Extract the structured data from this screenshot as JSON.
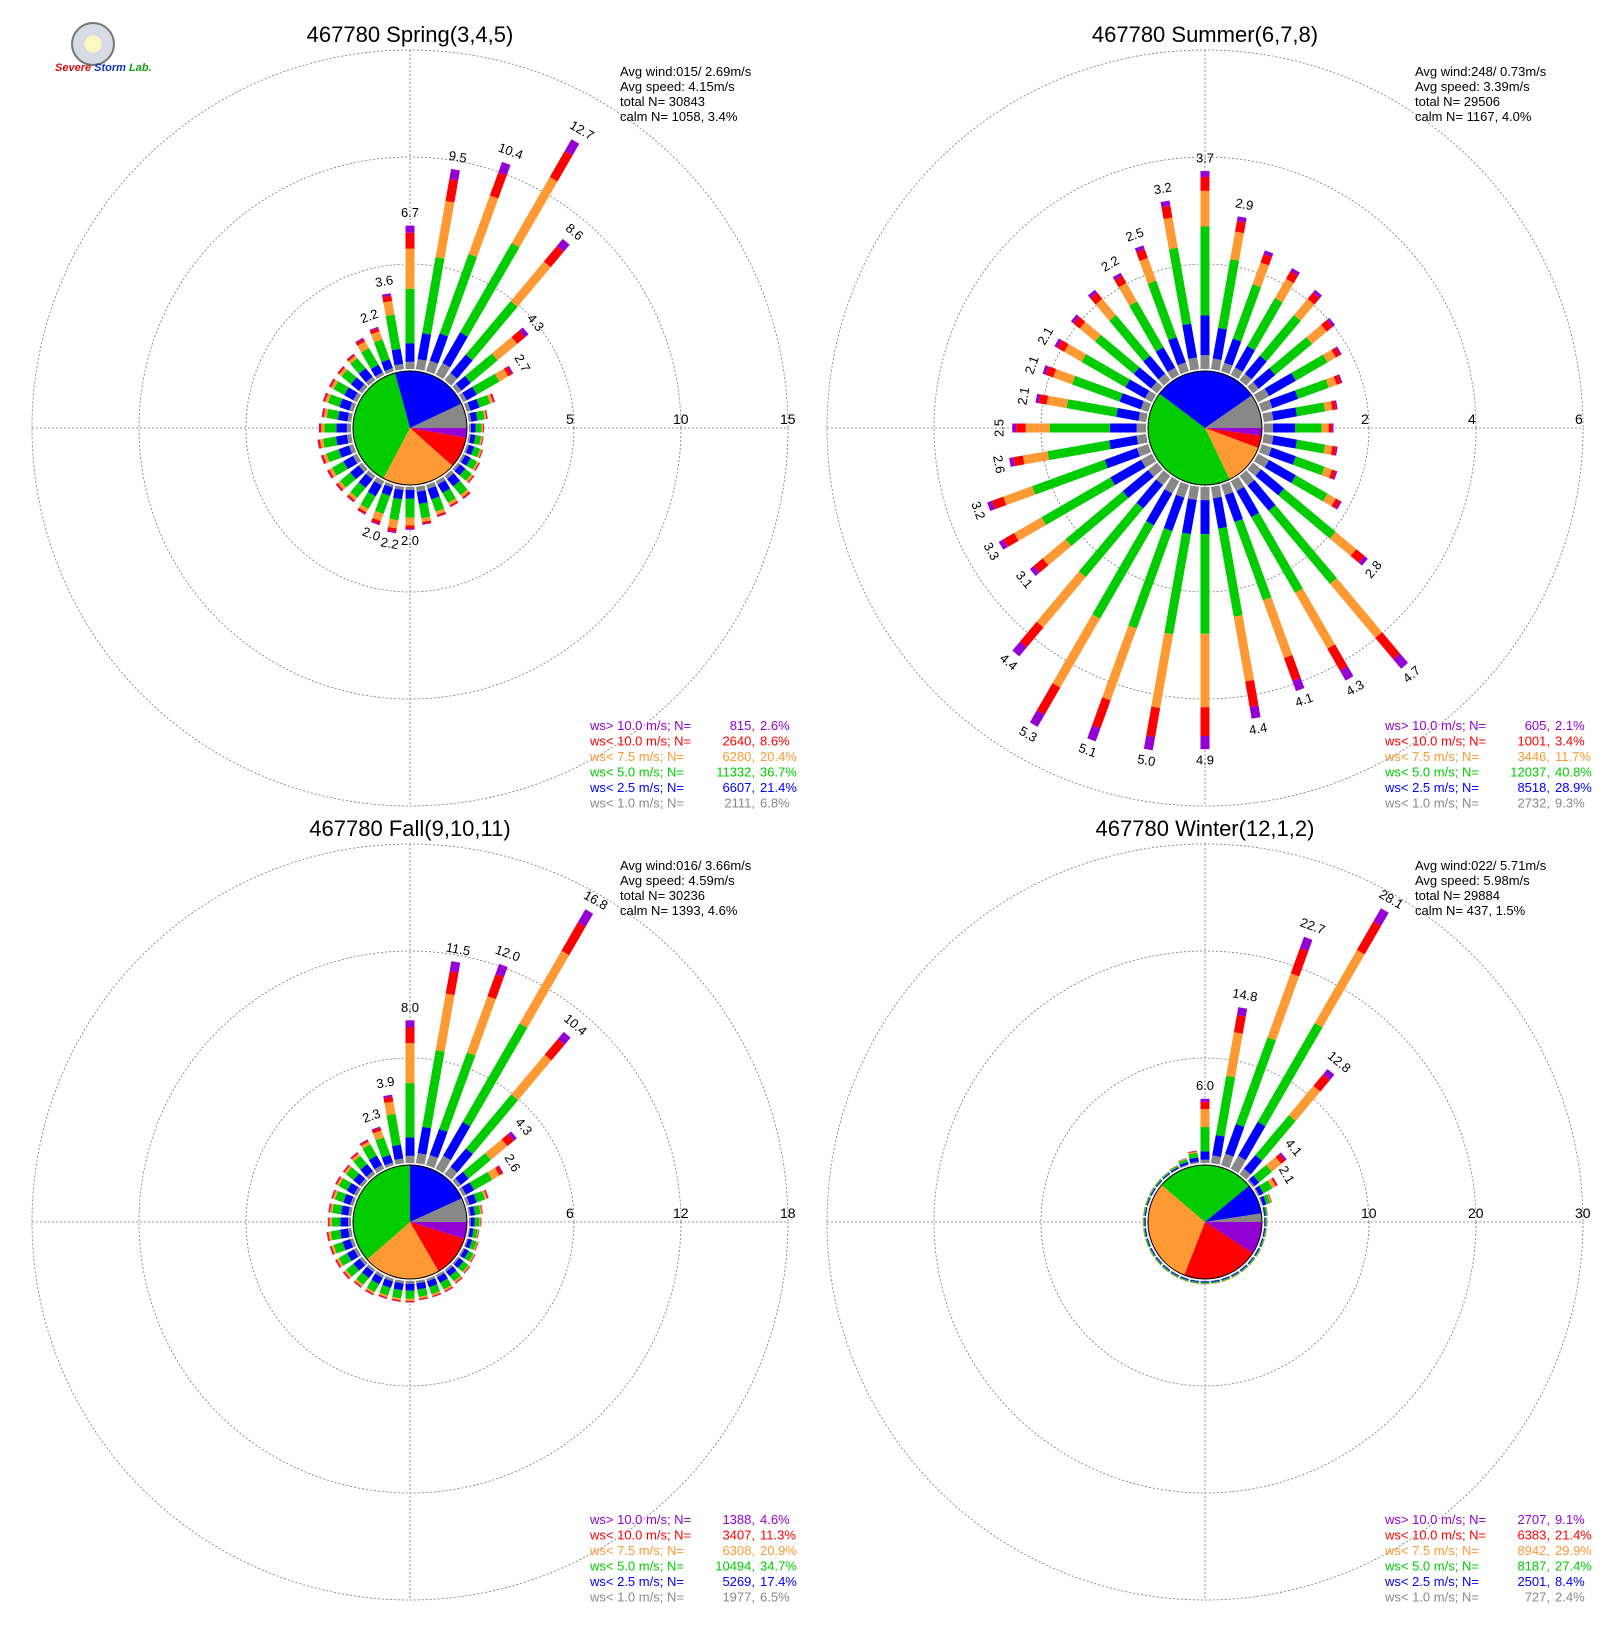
{
  "logo": {
    "part1": "Severe",
    "part2": "Storm",
    "part3": "Lab."
  },
  "colors": {
    "purple": "#9400d3",
    "red": "#ff0000",
    "orange": "#ff9933",
    "green": "#00cc00",
    "blue": "#0000ff",
    "gray": "#888888"
  },
  "chart_data": [
    {
      "type": "wind-rose",
      "station": "467780",
      "title": "467780 Spring(3,4,5)",
      "ring_labels": [
        "5",
        "10",
        "15"
      ],
      "rmax": 15,
      "stats": {
        "avg_wind": "Avg wind:015/ 2.69m/s",
        "avg_speed": "Avg speed: 4.15m/s",
        "total": "total N=      30843",
        "calm": "calm N=   1058,   3.4%"
      },
      "legend": [
        {
          "label": "ws> 10.0 m/s; N=",
          "count": "815",
          "pct": "2.6%",
          "color": "#9400d3"
        },
        {
          "label": "ws< 10.0 m/s; N=",
          "count": "2640",
          "pct": "8.6%",
          "color": "#ff0000"
        },
        {
          "label": "ws<  7.5 m/s; N=",
          "count": "6280",
          "pct": "20.4%",
          "color": "#ff9933"
        },
        {
          "label": "ws<  5.0 m/s; N=",
          "count": "11332",
          "pct": "36.7%",
          "color": "#00cc00"
        },
        {
          "label": "ws<  2.5 m/s; N=",
          "count": "6607",
          "pct": "21.4%",
          "color": "#0000ff"
        },
        {
          "label": "ws<  1.0 m/s; N=",
          "count": "2111",
          "pct": "6.8%",
          "color": "#888888"
        }
      ],
      "pie": [
        2.6,
        8.6,
        20.4,
        36.7,
        21.4,
        6.8
      ],
      "sectors": [
        {
          "dir": 0,
          "total": 6.7,
          "label": "6.7"
        },
        {
          "dir": 10,
          "total": 9.5,
          "label": "9.5"
        },
        {
          "dir": 20,
          "total": 10.4,
          "label": "10.4"
        },
        {
          "dir": 30,
          "total": 12.7,
          "label": "12.7"
        },
        {
          "dir": 40,
          "total": 8.6,
          "label": "8.6"
        },
        {
          "dir": 50,
          "total": 4.3,
          "label": "4.3"
        },
        {
          "dir": 60,
          "total": 2.7,
          "label": "2.7"
        },
        {
          "dir": 70,
          "total": 1.4
        },
        {
          "dir": 80,
          "total": 0.9
        },
        {
          "dir": 90,
          "total": 0.7
        },
        {
          "dir": 100,
          "total": 0.7
        },
        {
          "dir": 110,
          "total": 0.8
        },
        {
          "dir": 120,
          "total": 0.9
        },
        {
          "dir": 130,
          "total": 1.0
        },
        {
          "dir": 140,
          "total": 1.4
        },
        {
          "dir": 150,
          "total": 1.4
        },
        {
          "dir": 160,
          "total": 1.6
        },
        {
          "dir": 170,
          "total": 1.8
        },
        {
          "dir": 180,
          "total": 2.0,
          "label": "2.0"
        },
        {
          "dir": 190,
          "total": 2.2,
          "label": "2.2"
        },
        {
          "dir": 200,
          "total": 2.0,
          "label": "2.0"
        },
        {
          "dir": 210,
          "total": 1.8
        },
        {
          "dir": 220,
          "total": 1.6
        },
        {
          "dir": 230,
          "total": 1.6
        },
        {
          "dir": 240,
          "total": 1.6
        },
        {
          "dir": 250,
          "total": 1.6
        },
        {
          "dir": 260,
          "total": 1.6
        },
        {
          "dir": 270,
          "total": 1.5
        },
        {
          "dir": 280,
          "total": 1.4
        },
        {
          "dir": 290,
          "total": 1.5
        },
        {
          "dir": 300,
          "total": 1.5
        },
        {
          "dir": 310,
          "total": 1.5
        },
        {
          "dir": 320,
          "total": 1.6
        },
        {
          "dir": 330,
          "total": 2.0
        },
        {
          "dir": 340,
          "total": 2.2,
          "label": "2.2"
        },
        {
          "dir": 350,
          "total": 3.6,
          "label": "3.6"
        }
      ]
    },
    {
      "type": "wind-rose",
      "station": "467780",
      "title": "467780 Summer(6,7,8)",
      "ring_labels": [
        "2",
        "4",
        "6"
      ],
      "rmax": 6,
      "stats": {
        "avg_wind": "Avg wind:248/ 0.73m/s",
        "avg_speed": "Avg speed: 3.39m/s",
        "total": "total N=      29506",
        "calm": "calm N=   1167,   4.0%"
      },
      "legend": [
        {
          "label": "ws> 10.0 m/s; N=",
          "count": "605",
          "pct": "2.1%",
          "color": "#9400d3"
        },
        {
          "label": "ws< 10.0 m/s; N=",
          "count": "1001",
          "pct": "3.4%",
          "color": "#ff0000"
        },
        {
          "label": "ws<  7.5 m/s; N=",
          "count": "3446",
          "pct": "11.7%",
          "color": "#ff9933"
        },
        {
          "label": "ws<  5.0 m/s; N=",
          "count": "12037",
          "pct": "40.8%",
          "color": "#00cc00"
        },
        {
          "label": "ws<  2.5 m/s; N=",
          "count": "8518",
          "pct": "28.9%",
          "color": "#0000ff"
        },
        {
          "label": "ws<  1.0 m/s; N=",
          "count": "2732",
          "pct": "9.3%",
          "color": "#888888"
        }
      ],
      "pie": [
        2.1,
        3.4,
        11.7,
        40.8,
        28.9,
        9.3
      ],
      "sectors": [
        {
          "dir": 0,
          "total": 3.7,
          "label": "3.7"
        },
        {
          "dir": 10,
          "total": 2.9,
          "label": "2.9"
        },
        {
          "dir": 20,
          "total": 2.4
        },
        {
          "dir": 30,
          "total": 2.3
        },
        {
          "dir": 40,
          "total": 2.2
        },
        {
          "dir": 50,
          "total": 2.0
        },
        {
          "dir": 60,
          "total": 1.8
        },
        {
          "dir": 70,
          "total": 1.6
        },
        {
          "dir": 80,
          "total": 1.4
        },
        {
          "dir": 90,
          "total": 1.3
        },
        {
          "dir": 100,
          "total": 1.4
        },
        {
          "dir": 110,
          "total": 1.5
        },
        {
          "dir": 120,
          "total": 1.8
        },
        {
          "dir": 130,
          "total": 2.8,
          "label": "2.8"
        },
        {
          "dir": 140,
          "total": 4.7,
          "label": "4.7"
        },
        {
          "dir": 150,
          "total": 4.3,
          "label": "4.3"
        },
        {
          "dir": 160,
          "total": 4.1,
          "label": "4.1"
        },
        {
          "dir": 170,
          "total": 4.4,
          "label": "4.4"
        },
        {
          "dir": 180,
          "total": 4.9,
          "label": "4.9"
        },
        {
          "dir": 190,
          "total": 5.0,
          "label": "5.0"
        },
        {
          "dir": 200,
          "total": 5.1,
          "label": "5.1"
        },
        {
          "dir": 210,
          "total": 5.3,
          "label": "5.3"
        },
        {
          "dir": 220,
          "total": 4.4,
          "label": "4.4"
        },
        {
          "dir": 230,
          "total": 3.1,
          "label": "3.1"
        },
        {
          "dir": 240,
          "total": 3.3,
          "label": "3.3"
        },
        {
          "dir": 250,
          "total": 3.2,
          "label": "3.2"
        },
        {
          "dir": 260,
          "total": 2.6,
          "label": "2.6"
        },
        {
          "dir": 270,
          "total": 2.5,
          "label": "2.5"
        },
        {
          "dir": 280,
          "total": 2.1,
          "label": "2.1"
        },
        {
          "dir": 290,
          "total": 2.1,
          "label": "2.1"
        },
        {
          "dir": 300,
          "total": 2.1,
          "label": "2.1"
        },
        {
          "dir": 310,
          "total": 2.1
        },
        {
          "dir": 320,
          "total": 2.2
        },
        {
          "dir": 330,
          "total": 2.2,
          "label": "2.2"
        },
        {
          "dir": 340,
          "total": 2.5,
          "label": "2.5"
        },
        {
          "dir": 350,
          "total": 3.2,
          "label": "3.2"
        }
      ]
    },
    {
      "type": "wind-rose",
      "station": "467780",
      "title": "467780 Fall(9,10,11)",
      "ring_labels": [
        "6",
        "12",
        "18"
      ],
      "rmax": 18,
      "stats": {
        "avg_wind": "Avg wind:016/ 3.66m/s",
        "avg_speed": "Avg speed: 4.59m/s",
        "total": "total N=      30236",
        "calm": "calm N=   1393,   4.6%"
      },
      "legend": [
        {
          "label": "ws> 10.0 m/s; N=",
          "count": "1388",
          "pct": "4.6%",
          "color": "#9400d3"
        },
        {
          "label": "ws< 10.0 m/s; N=",
          "count": "3407",
          "pct": "11.3%",
          "color": "#ff0000"
        },
        {
          "label": "ws<  7.5 m/s; N=",
          "count": "6308",
          "pct": "20.9%",
          "color": "#ff9933"
        },
        {
          "label": "ws<  5.0 m/s; N=",
          "count": "10494",
          "pct": "34.7%",
          "color": "#00cc00"
        },
        {
          "label": "ws<  2.5 m/s; N=",
          "count": "5269",
          "pct": "17.4%",
          "color": "#0000ff"
        },
        {
          "label": "ws<  1.0 m/s; N=",
          "count": "1977",
          "pct": "6.5%",
          "color": "#888888"
        }
      ],
      "pie": [
        4.6,
        11.3,
        20.9,
        34.7,
        17.4,
        6.5
      ],
      "sectors": [
        {
          "dir": 0,
          "total": 8.0,
          "label": "8.0"
        },
        {
          "dir": 10,
          "total": 11.5,
          "label": "11.5"
        },
        {
          "dir": 20,
          "total": 12.0,
          "label": "12.0"
        },
        {
          "dir": 30,
          "total": 16.8,
          "label": "16.8"
        },
        {
          "dir": 40,
          "total": 10.4,
          "label": "10.4"
        },
        {
          "dir": 50,
          "total": 4.3,
          "label": "4.3"
        },
        {
          "dir": 60,
          "total": 2.6,
          "label": "2.6"
        },
        {
          "dir": 70,
          "total": 1.3
        },
        {
          "dir": 80,
          "total": 0.8
        },
        {
          "dir": 90,
          "total": 0.7
        },
        {
          "dir": 100,
          "total": 0.6
        },
        {
          "dir": 110,
          "total": 0.7
        },
        {
          "dir": 120,
          "total": 0.8
        },
        {
          "dir": 130,
          "total": 0.9
        },
        {
          "dir": 140,
          "total": 1.0
        },
        {
          "dir": 150,
          "total": 1.1
        },
        {
          "dir": 160,
          "total": 1.1
        },
        {
          "dir": 170,
          "total": 1.1
        },
        {
          "dir": 180,
          "total": 1.2
        },
        {
          "dir": 190,
          "total": 1.2
        },
        {
          "dir": 200,
          "total": 1.2
        },
        {
          "dir": 210,
          "total": 1.3
        },
        {
          "dir": 220,
          "total": 1.3
        },
        {
          "dir": 230,
          "total": 1.4
        },
        {
          "dir": 240,
          "total": 1.4
        },
        {
          "dir": 250,
          "total": 1.4
        },
        {
          "dir": 260,
          "total": 1.4
        },
        {
          "dir": 270,
          "total": 1.3
        },
        {
          "dir": 280,
          "total": 1.3
        },
        {
          "dir": 290,
          "total": 1.3
        },
        {
          "dir": 300,
          "total": 1.4
        },
        {
          "dir": 310,
          "total": 1.4
        },
        {
          "dir": 320,
          "total": 1.6
        },
        {
          "dir": 330,
          "total": 1.9
        },
        {
          "dir": 340,
          "total": 2.3,
          "label": "2.3"
        },
        {
          "dir": 350,
          "total": 3.9,
          "label": "3.9"
        }
      ]
    },
    {
      "type": "wind-rose",
      "station": "467780",
      "title": "467780 Winter(12,1,2)",
      "ring_labels": [
        "10",
        "20",
        "30"
      ],
      "rmax": 30,
      "stats": {
        "avg_wind": "Avg wind:022/ 5.71m/s",
        "avg_speed": "Avg speed: 5.98m/s",
        "total": "total N=      29884",
        "calm": "calm N=    437,   1.5%"
      },
      "legend": [
        {
          "label": "ws> 10.0 m/s; N=",
          "count": "2707",
          "pct": "9.1%",
          "color": "#9400d3"
        },
        {
          "label": "ws< 10.0 m/s; N=",
          "count": "6383",
          "pct": "21.4%",
          "color": "#ff0000"
        },
        {
          "label": "ws<  7.5 m/s; N=",
          "count": "8942",
          "pct": "29.9%",
          "color": "#ff9933"
        },
        {
          "label": "ws<  5.0 m/s; N=",
          "count": "8187",
          "pct": "27.4%",
          "color": "#00cc00"
        },
        {
          "label": "ws<  2.5 m/s; N=",
          "count": "2501",
          "pct": "8.4%",
          "color": "#0000ff"
        },
        {
          "label": "ws<  1.0 m/s; N=",
          "count": "727",
          "pct": "2.4%",
          "color": "#888888"
        }
      ],
      "pie": [
        9.1,
        21.4,
        29.9,
        27.4,
        8.4,
        2.4
      ],
      "sectors": [
        {
          "dir": 0,
          "total": 6.0,
          "label": "6.0"
        },
        {
          "dir": 10,
          "total": 14.8,
          "label": "14.8"
        },
        {
          "dir": 20,
          "total": 22.7,
          "label": "22.7"
        },
        {
          "dir": 30,
          "total": 28.1,
          "label": "28.1"
        },
        {
          "dir": 40,
          "total": 12.8,
          "label": "12.8"
        },
        {
          "dir": 50,
          "total": 4.1,
          "label": "4.1"
        },
        {
          "dir": 60,
          "total": 2.1,
          "label": "2.1"
        },
        {
          "dir": 70,
          "total": 1.0
        },
        {
          "dir": 80,
          "total": 0.4
        },
        {
          "dir": 90,
          "total": 0.3
        },
        {
          "dir": 100,
          "total": 0.3
        },
        {
          "dir": 110,
          "total": 0.3
        },
        {
          "dir": 120,
          "total": 0.3
        },
        {
          "dir": 130,
          "total": 0.3
        },
        {
          "dir": 140,
          "total": 0.3
        },
        {
          "dir": 150,
          "total": 0.3
        },
        {
          "dir": 160,
          "total": 0.3
        },
        {
          "dir": 170,
          "total": 0.3
        },
        {
          "dir": 180,
          "total": 0.3
        },
        {
          "dir": 190,
          "total": 0.3
        },
        {
          "dir": 200,
          "total": 0.3
        },
        {
          "dir": 210,
          "total": 0.3
        },
        {
          "dir": 220,
          "total": 0.3
        },
        {
          "dir": 230,
          "total": 0.3
        },
        {
          "dir": 240,
          "total": 0.3
        },
        {
          "dir": 250,
          "total": 0.3
        },
        {
          "dir": 260,
          "total": 0.3
        },
        {
          "dir": 270,
          "total": 0.3
        },
        {
          "dir": 280,
          "total": 0.3
        },
        {
          "dir": 290,
          "total": 0.3
        },
        {
          "dir": 300,
          "total": 0.3
        },
        {
          "dir": 310,
          "total": 0.3
        },
        {
          "dir": 320,
          "total": 0.3
        },
        {
          "dir": 330,
          "total": 0.4
        },
        {
          "dir": 340,
          "total": 0.7
        },
        {
          "dir": 350,
          "total": 1.2
        }
      ]
    }
  ]
}
